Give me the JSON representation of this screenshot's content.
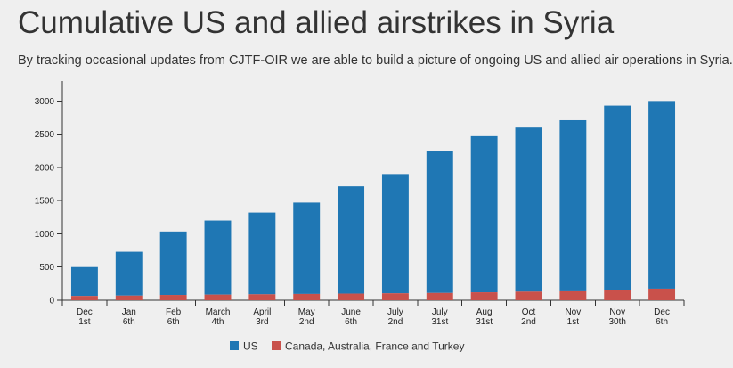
{
  "header": {
    "title": "Cumulative US and allied airstrikes in Syria",
    "subtitle": "By tracking occasional updates from CJTF-OIR we are able to build a picture of ongoing US and allied air operations in Syria."
  },
  "colors": {
    "us": "#1f77b4",
    "allies": "#c9514b",
    "axis": "#333333"
  },
  "chart_data": {
    "type": "bar",
    "stacked": true,
    "title": "Cumulative US and allied airstrikes in Syria",
    "categories": [
      [
        "Dec",
        "1st"
      ],
      [
        "Jan",
        "6th"
      ],
      [
        "Feb",
        "6th"
      ],
      [
        "March",
        "4th"
      ],
      [
        "April",
        "3rd"
      ],
      [
        "May",
        "2nd"
      ],
      [
        "June",
        "6th"
      ],
      [
        "July",
        "2nd"
      ],
      [
        "July",
        "31st"
      ],
      [
        "Aug",
        "31st"
      ],
      [
        "Oct",
        "2nd"
      ],
      [
        "Nov",
        "1st"
      ],
      [
        "Nov",
        "30th"
      ],
      [
        "Dec",
        "6th"
      ]
    ],
    "series": [
      {
        "name": "Canada, Australia, France and Turkey",
        "key": "allies",
        "values": [
          65,
          70,
          80,
          85,
          90,
          95,
          100,
          105,
          110,
          120,
          130,
          135,
          150,
          175
        ]
      },
      {
        "name": "US",
        "key": "us",
        "values": [
          435,
          660,
          955,
          1115,
          1230,
          1375,
          1615,
          1795,
          2140,
          2350,
          2470,
          2575,
          2780,
          2825
        ]
      }
    ],
    "legend": [
      "US",
      "Canada, Australia, France and Turkey"
    ],
    "legend_position": "bottom",
    "yticks": [
      0,
      500,
      1000,
      1500,
      2000,
      2500,
      3000
    ],
    "ylim": [
      0,
      3300
    ],
    "xlabel": "",
    "ylabel": "",
    "grid": false
  }
}
